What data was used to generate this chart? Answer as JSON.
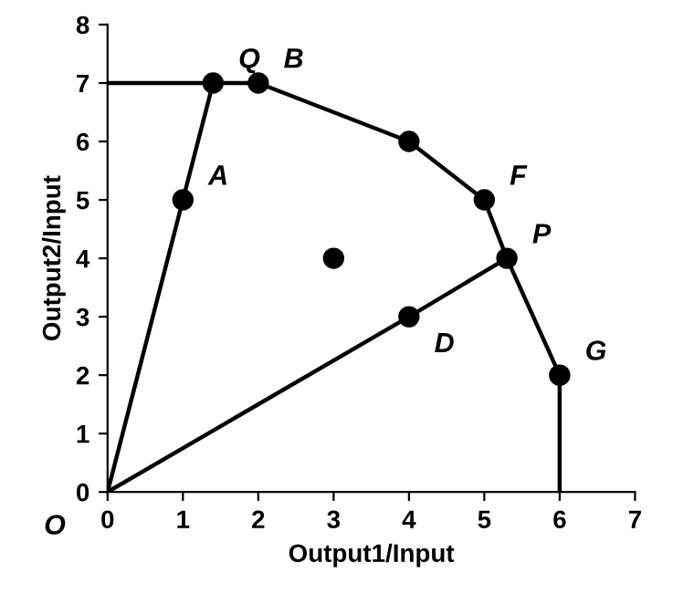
{
  "chart_data": {
    "type": "line",
    "xlabel": "Output1/Input",
    "ylabel": "Output2/Input",
    "xlim": [
      0,
      7
    ],
    "ylim": [
      0,
      8
    ],
    "xticks": [
      0,
      1,
      2,
      3,
      4,
      5,
      6,
      7
    ],
    "yticks": [
      0,
      1,
      2,
      3,
      4,
      5,
      6,
      7,
      8
    ],
    "grid": false,
    "legend": false,
    "series": [
      {
        "color": "#000000",
        "marker": "none",
        "line_style": "solid",
        "x": [
          0,
          1.4,
          2,
          4,
          5,
          5.3,
          6,
          6
        ],
        "values": [
          7,
          7,
          7,
          6,
          5,
          4,
          2,
          0
        ]
      },
      {
        "color": "#000000",
        "marker": "none",
        "line_style": "solid",
        "x": [
          0,
          1,
          1.4
        ],
        "values": [
          0,
          5,
          7
        ]
      },
      {
        "color": "#000000",
        "marker": "none",
        "line_style": "solid",
        "x": [
          0,
          4,
          5.3
        ],
        "values": [
          0,
          3,
          4
        ]
      },
      {
        "type": "scatter",
        "color": "#000000",
        "marker": "circle",
        "x": [
          1,
          1.4,
          2,
          4,
          5,
          5.3,
          6,
          3,
          4
        ],
        "values": [
          5,
          7,
          7,
          6,
          5,
          4,
          2,
          4,
          3
        ]
      }
    ],
    "annotations": [
      {
        "text": "A",
        "x": 1,
        "y": 5
      },
      {
        "text": "Q",
        "x": 1.4,
        "y": 7
      },
      {
        "text": "B",
        "x": 2,
        "y": 7
      },
      {
        "text": "F",
        "x": 5,
        "y": 5
      },
      {
        "text": "P",
        "x": 5.3,
        "y": 4
      },
      {
        "text": "G",
        "x": 6,
        "y": 2
      },
      {
        "text": "D",
        "x": 4,
        "y": 3
      },
      "O"
    ]
  }
}
